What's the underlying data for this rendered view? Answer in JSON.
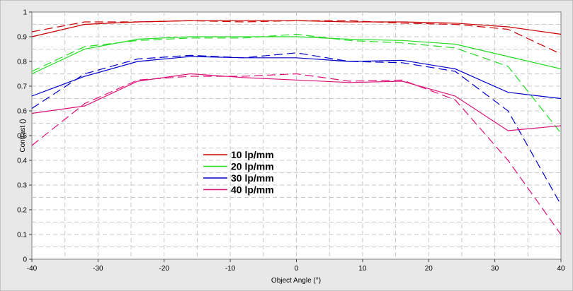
{
  "chart_data": {
    "type": "line",
    "title": "",
    "xlabel": "Object Angle (°)",
    "ylabel": "Contrast ()",
    "xlim": [
      -40,
      40
    ],
    "ylim": [
      0,
      1
    ],
    "xticks": [
      "-40",
      "-30",
      "-20",
      "-10",
      "0",
      "10",
      "20",
      "30",
      "40"
    ],
    "yticks": [
      "0",
      "0.1",
      "0.2",
      "0.3",
      "0.4",
      "0.5",
      "0.6",
      "0.7",
      "0.8",
      "0.9",
      "1"
    ],
    "grid": true,
    "legend_position": "center-left",
    "colors": {
      "background": "#ffffff",
      "frame": "#e8e8e8",
      "grid": "#c8c8c8",
      "10 lp/mm": "#cc0000",
      "20 lp/mm": "#22dd22",
      "30 lp/mm": "#0000cc",
      "40 lp/mm": "#dd1177"
    },
    "series": [
      {
        "name": "10 lp/mm",
        "style": "solid",
        "color": "#cc0000",
        "x": [
          -40,
          -32,
          -24,
          -16,
          -8,
          0,
          8,
          16,
          24,
          32,
          40
        ],
        "y": [
          0.9,
          0.95,
          0.96,
          0.965,
          0.965,
          0.965,
          0.96,
          0.96,
          0.955,
          0.94,
          0.91
        ]
      },
      {
        "name": "",
        "style": "dashed",
        "color": "#cc0000",
        "x": [
          -40,
          -32,
          -24,
          -16,
          -8,
          0,
          8,
          16,
          24,
          32,
          40
        ],
        "y": [
          0.92,
          0.96,
          0.96,
          0.965,
          0.96,
          0.965,
          0.965,
          0.955,
          0.95,
          0.93,
          0.83
        ]
      },
      {
        "name": "20 lp/mm",
        "style": "solid",
        "color": "#22dd22",
        "x": [
          -40,
          -32,
          -24,
          -16,
          -8,
          0,
          8,
          16,
          24,
          32,
          40
        ],
        "y": [
          0.75,
          0.85,
          0.89,
          0.9,
          0.9,
          0.9,
          0.89,
          0.885,
          0.87,
          0.82,
          0.77
        ]
      },
      {
        "name": "",
        "style": "dashed",
        "color": "#22dd22",
        "x": [
          -40,
          -32,
          -24,
          -16,
          -8,
          0,
          8,
          16,
          24,
          32,
          40
        ],
        "y": [
          0.76,
          0.86,
          0.885,
          0.895,
          0.895,
          0.91,
          0.885,
          0.875,
          0.855,
          0.78,
          0.51
        ]
      },
      {
        "name": "30 lp/mm",
        "style": "solid",
        "color": "#0000cc",
        "x": [
          -40,
          -32,
          -24,
          -16,
          -8,
          0,
          8,
          16,
          24,
          32,
          40
        ],
        "y": [
          0.66,
          0.74,
          0.8,
          0.82,
          0.815,
          0.815,
          0.8,
          0.805,
          0.77,
          0.675,
          0.65
        ]
      },
      {
        "name": "",
        "style": "dashed",
        "color": "#0000cc",
        "x": [
          -40,
          -32,
          -24,
          -16,
          -8,
          0,
          8,
          16,
          24,
          32,
          40
        ],
        "y": [
          0.61,
          0.75,
          0.81,
          0.825,
          0.815,
          0.835,
          0.8,
          0.795,
          0.76,
          0.6,
          0.22
        ]
      },
      {
        "name": "40 lp/mm",
        "style": "solid",
        "color": "#dd1177",
        "x": [
          -40,
          -32,
          -24,
          -16,
          -8,
          0,
          8,
          16,
          24,
          32,
          40
        ],
        "y": [
          0.59,
          0.62,
          0.72,
          0.75,
          0.735,
          0.725,
          0.715,
          0.72,
          0.66,
          0.52,
          0.54
        ]
      },
      {
        "name": "",
        "style": "dashed",
        "color": "#dd1177",
        "x": [
          -40,
          -32,
          -24,
          -16,
          -8,
          0,
          8,
          16,
          24,
          32,
          40
        ],
        "y": [
          0.46,
          0.63,
          0.725,
          0.74,
          0.74,
          0.75,
          0.72,
          0.725,
          0.645,
          0.4,
          0.1
        ]
      }
    ]
  }
}
